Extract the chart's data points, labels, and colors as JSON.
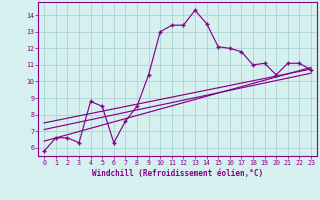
{
  "title": "",
  "xlabel": "Windchill (Refroidissement éolien,°C)",
  "bg_color": "#d6f0f0",
  "line_color": "#880088",
  "grid_color": "#b0d8d8",
  "xlim": [
    -0.5,
    23.5
  ],
  "ylim": [
    5.5,
    14.8
  ],
  "xticks": [
    0,
    1,
    2,
    3,
    4,
    5,
    6,
    7,
    8,
    9,
    10,
    11,
    12,
    13,
    14,
    15,
    16,
    17,
    18,
    19,
    20,
    21,
    22,
    23
  ],
  "yticks": [
    6,
    7,
    8,
    9,
    10,
    11,
    12,
    13,
    14
  ],
  "main_line_x": [
    0,
    1,
    2,
    3,
    4,
    5,
    6,
    7,
    8,
    9,
    10,
    11,
    12,
    13,
    14,
    15,
    16,
    17,
    18,
    19,
    20,
    21,
    22,
    23
  ],
  "main_line_y": [
    5.8,
    6.6,
    6.6,
    6.3,
    8.8,
    8.5,
    6.3,
    7.6,
    8.5,
    10.4,
    13.0,
    13.4,
    13.4,
    14.3,
    13.5,
    12.1,
    12.0,
    11.8,
    11.0,
    11.1,
    10.4,
    11.1,
    11.1,
    10.7
  ],
  "line2_x": [
    0,
    23
  ],
  "line2_y": [
    6.4,
    10.85
  ],
  "line3_x": [
    0,
    23
  ],
  "line3_y": [
    7.1,
    10.5
  ],
  "line4_x": [
    0,
    23
  ],
  "line4_y": [
    7.5,
    10.75
  ]
}
